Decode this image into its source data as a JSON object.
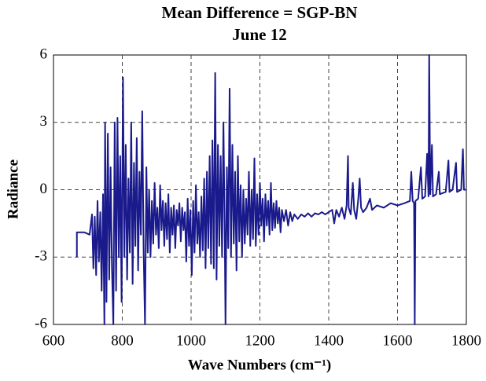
{
  "chart_data": {
    "type": "line",
    "title": "Mean Difference = SGP-BN",
    "subtitle": "June 12",
    "x_label": "Wave Numbers (cm⁻¹)",
    "y_label": "Radiance",
    "xlim": [
      600,
      1800
    ],
    "xticks": [
      600,
      800,
      1000,
      1200,
      1400,
      1600,
      1800
    ],
    "ylim": [
      -6,
      6
    ],
    "yticks": [
      -6,
      -3,
      0,
      3,
      6
    ],
    "grid": true,
    "series": [
      {
        "color": "#1a1a8c",
        "x": [
          668,
          668,
          690,
          705,
          712,
          716,
          720,
          724,
          728,
          732,
          736,
          740,
          744,
          748,
          750,
          754,
          758,
          762,
          766,
          770,
          774,
          778,
          782,
          786,
          790,
          794,
          798,
          802,
          806,
          810,
          814,
          818,
          822,
          826,
          830,
          834,
          838,
          842,
          846,
          850,
          854,
          858,
          862,
          866,
          870,
          874,
          878,
          882,
          886,
          890,
          894,
          898,
          902,
          906,
          910,
          914,
          918,
          922,
          926,
          930,
          934,
          938,
          942,
          946,
          950,
          954,
          958,
          962,
          966,
          970,
          974,
          978,
          982,
          986,
          990,
          994,
          998,
          1002,
          1006,
          1010,
          1014,
          1018,
          1022,
          1026,
          1030,
          1034,
          1038,
          1042,
          1046,
          1050,
          1054,
          1058,
          1062,
          1066,
          1070,
          1074,
          1078,
          1082,
          1086,
          1090,
          1094,
          1098,
          1100,
          1104,
          1108,
          1112,
          1116,
          1120,
          1124,
          1128,
          1132,
          1136,
          1140,
          1144,
          1148,
          1152,
          1156,
          1160,
          1164,
          1168,
          1172,
          1176,
          1180,
          1184,
          1188,
          1192,
          1196,
          1200,
          1204,
          1208,
          1212,
          1216,
          1220,
          1224,
          1228,
          1232,
          1236,
          1240,
          1244,
          1248,
          1252,
          1256,
          1260,
          1264,
          1270,
          1276,
          1282,
          1288,
          1294,
          1300,
          1310,
          1320,
          1330,
          1340,
          1350,
          1360,
          1370,
          1380,
          1390,
          1400,
          1410,
          1416,
          1422,
          1430,
          1438,
          1446,
          1452,
          1456,
          1458,
          1464,
          1470,
          1474,
          1480,
          1486,
          1490,
          1494,
          1500,
          1510,
          1520,
          1526,
          1540,
          1560,
          1580,
          1600,
          1620,
          1636,
          1640,
          1644,
          1648,
          1650,
          1652,
          1660,
          1668,
          1672,
          1680,
          1686,
          1690,
          1692,
          1695,
          1700,
          1703,
          1712,
          1720,
          1723,
          1740,
          1748,
          1751,
          1760,
          1770,
          1773,
          1785,
          1790,
          1793,
          1800
        ],
        "values": [
          -3,
          -1.9,
          -1.9,
          -2,
          -1.1,
          -3.5,
          -1.2,
          -3.8,
          -0.5,
          -3.2,
          -1,
          -4.5,
          -0.2,
          -6,
          3,
          -5,
          2.5,
          -4,
          1,
          -3.5,
          -6,
          3,
          -4.5,
          3.2,
          -3,
          1.5,
          -5,
          5,
          -3,
          2,
          -4,
          0.5,
          -2.8,
          3,
          -4.2,
          1.2,
          -2.5,
          2.3,
          -3.6,
          0.8,
          -2,
          3.5,
          -2.7,
          -6,
          1,
          -2.8,
          0,
          -3,
          -0.5,
          -2.4,
          0.3,
          -2,
          -0.8,
          -2.6,
          0.2,
          -1.8,
          -0.5,
          -2.5,
          -0.6,
          -2.2,
          -0.2,
          -2.8,
          -0.8,
          -2,
          -0.7,
          -2.6,
          -0.9,
          -1.6,
          -0.6,
          -2.3,
          -0.8,
          -1.8,
          -1,
          -3.2,
          -0.4,
          -2.5,
          -0.9,
          -3.8,
          -0.5,
          -2.8,
          0.2,
          -2.4,
          -1,
          -3,
          -0.3,
          -2.7,
          0.5,
          -3.5,
          0.8,
          -2.6,
          1.5,
          -3.3,
          2.2,
          -3.5,
          5.2,
          -4,
          2,
          -2.5,
          1.5,
          -3,
          3,
          -2.3,
          -6,
          1,
          -2.6,
          4.5,
          -3,
          2,
          -2.4,
          0.8,
          -3.6,
          1.5,
          -2.3,
          0.2,
          -3,
          0,
          -2.4,
          -0.4,
          -2,
          0.8,
          -2.5,
          0,
          -2.2,
          1.4,
          -2.5,
          -0.2,
          -2,
          0.3,
          -1.6,
          -0.4,
          -2.3,
          -0.2,
          -1.6,
          -0.5,
          -2,
          0.3,
          -1.8,
          -0.6,
          -1.7,
          -0.5,
          -1.5,
          -0.8,
          -1.9,
          -0.9,
          -1.4,
          -0.9,
          -1.6,
          -1,
          -1.4,
          -1.1,
          -1.3,
          -1.1,
          -1.2,
          -1.05,
          -1.2,
          -1.05,
          -1.1,
          -1,
          -1.1,
          -1,
          -0.9,
          -1.5,
          -0.9,
          -1.2,
          -0.8,
          -1.3,
          -0.7,
          1.5,
          -0.8,
          -1.1,
          0.3,
          -0.9,
          -1.3,
          -0.4,
          0.5,
          -0.8,
          -1,
          -0.8,
          -0.4,
          -0.9,
          -0.7,
          -0.8,
          -0.6,
          -0.7,
          -0.6,
          -0.5,
          0.8,
          -0.5,
          -0.6,
          -6,
          -0.5,
          -0.4,
          1,
          -0.4,
          -0.3,
          1.6,
          -0.3,
          6,
          -0.2,
          2,
          -0.3,
          -0.2,
          0.8,
          -0.2,
          -0.1,
          1.3,
          -0.1,
          0,
          1.2,
          -0.1,
          0,
          1.8,
          0,
          0
        ]
      }
    ]
  }
}
